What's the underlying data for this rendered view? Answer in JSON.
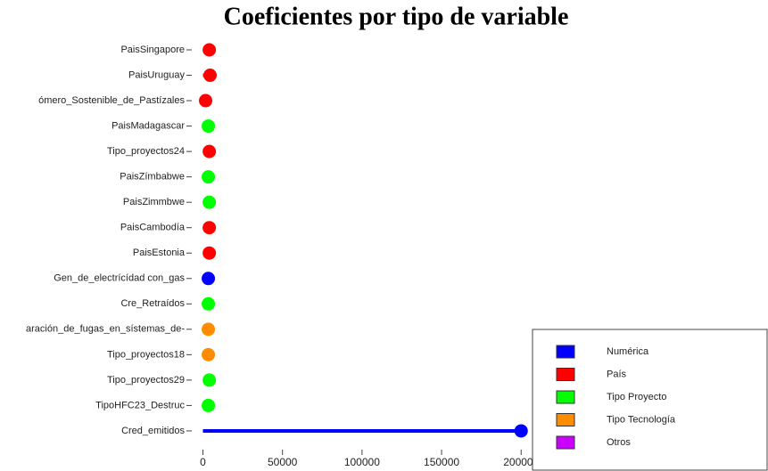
{
  "chart_data": {
    "type": "lollipop",
    "title": "Coeficientes por tipo de variable",
    "categories": [
      "PaisSingapore",
      "PaisUruguay",
      "ómero_Sostenible_de_Pastízales",
      "PaisMadagascar",
      "Tipo_proyectos24",
      "PaisZímbabwe",
      "PaisZimmbwe",
      "PaisCambodía",
      "PaisEstonia",
      "Gen_de_electrícídad con_gas",
      "Cre_Retraídos",
      "aración_de_fugas_en_sístemas_de-",
      "Tipo_proyectos18",
      "Tipo_proyectos29",
      "TipoHFC23_Destruc",
      "Cred_emitidos"
    ],
    "values": [
      4000,
      4500,
      1700,
      3400,
      4000,
      3400,
      4000,
      4000,
      4000,
      3400,
      3400,
      3400,
      3400,
      4000,
      3400,
      200000
    ],
    "colors": [
      "#ff0000",
      "#ff0000",
      "#ff0000",
      "#00ff00",
      "#ff0000",
      "#00ff00",
      "#00ff00",
      "#ff0000",
      "#ff0000",
      "#0000ff",
      "#00ff00",
      "#ff8c00",
      "#ff8c00",
      "#00ff00",
      "#00ff00",
      "#0000ff"
    ],
    "xlim": [
      -7000,
      215000
    ],
    "xticks": [
      0,
      50000,
      100000,
      150000,
      200000
    ],
    "legend": [
      {
        "name": "Numérica",
        "color": "#0000ff"
      },
      {
        "name": "País",
        "color": "#ff0000"
      },
      {
        "name": "Tipo Proyecto",
        "color": "#00ff00"
      },
      {
        "name": "Tipo Tecnología",
        "color": "#ff8c00"
      },
      {
        "name": "Otros",
        "color": "#cc00ff"
      }
    ],
    "legend_position": "lower right"
  }
}
